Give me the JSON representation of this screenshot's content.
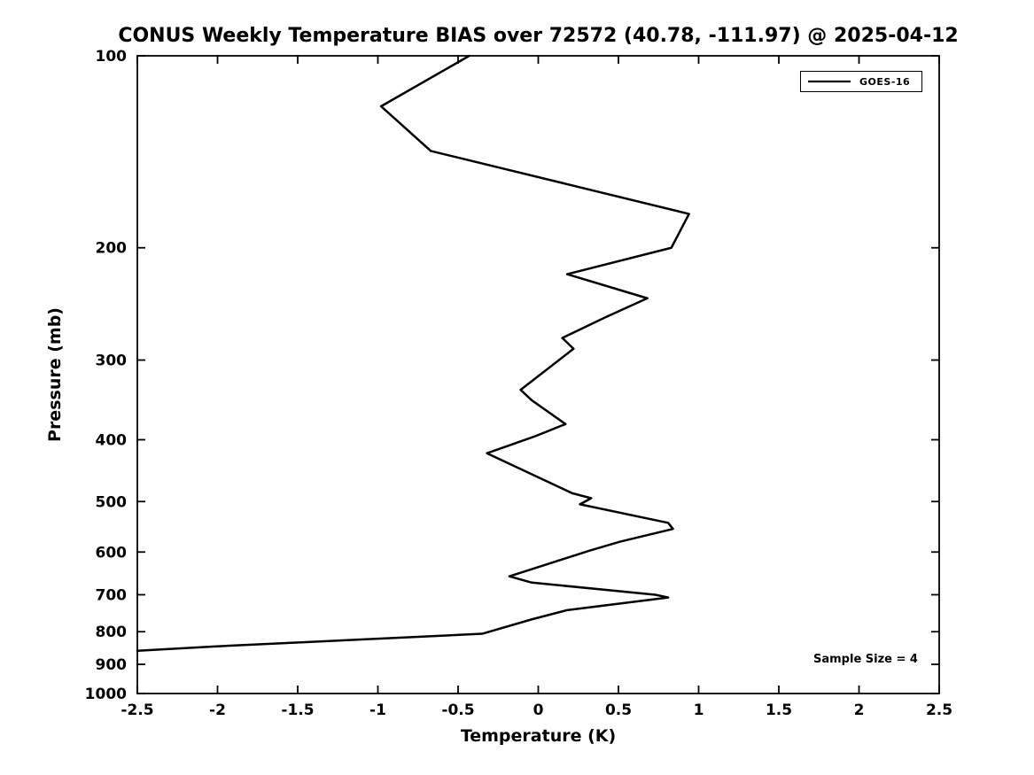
{
  "chart_data": {
    "type": "line",
    "title": "CONUS Weekly Temperature BIAS over 72572 (40.78, -111.97) @ 2025-04-12",
    "xlabel": "Temperature (K)",
    "ylabel": "Pressure (mb)",
    "xlim": [
      -2.5,
      2.5
    ],
    "ylim": [
      100,
      1000
    ],
    "yscale": "log",
    "y_inverted": true,
    "grid": false,
    "x_ticks": [
      -2.5,
      -2,
      -1.5,
      -1,
      -0.5,
      0,
      0.5,
      1,
      1.5,
      2,
      2.5
    ],
    "x_tick_labels": [
      "-2.5",
      "-2",
      "-1.5",
      "-1",
      "-0.5",
      "0",
      "0.5",
      "1",
      "1.5",
      "2",
      "2.5"
    ],
    "y_ticks": [
      100,
      200,
      300,
      400,
      500,
      600,
      700,
      800,
      900,
      1000
    ],
    "y_tick_labels": [
      "100",
      "200",
      "300",
      "400",
      "500",
      "600",
      "700",
      "800",
      "900",
      "1000"
    ],
    "legend": {
      "position": "top-right",
      "entries": [
        {
          "label": "GOES-16",
          "color": "#000000"
        }
      ]
    },
    "annotation": "Sample Size = 4",
    "line_color": "#000000",
    "series": [
      {
        "name": "GOES-16",
        "color": "#000000",
        "points_format": [
          "temperature_bias_K",
          "pressure_mb"
        ],
        "points": [
          [
            -0.43,
            100
          ],
          [
            -0.98,
            120
          ],
          [
            -0.67,
            141
          ],
          [
            0.27,
            161
          ],
          [
            0.94,
            177
          ],
          [
            0.83,
            200
          ],
          [
            0.18,
            220
          ],
          [
            0.68,
            240
          ],
          [
            0.42,
            257
          ],
          [
            0.15,
            277
          ],
          [
            0.22,
            288
          ],
          [
            -0.11,
            334
          ],
          [
            -0.04,
            347
          ],
          [
            0.17,
            378
          ],
          [
            -0.02,
            395
          ],
          [
            -0.32,
            420
          ],
          [
            0.21,
            485
          ],
          [
            0.33,
            494
          ],
          [
            0.26,
            505
          ],
          [
            0.81,
            540
          ],
          [
            0.84,
            552
          ],
          [
            0.51,
            578
          ],
          [
            0.32,
            597
          ],
          [
            -0.18,
            655
          ],
          [
            -0.04,
            670
          ],
          [
            0.73,
            700
          ],
          [
            0.81,
            707
          ],
          [
            0.18,
            740
          ],
          [
            -0.04,
            765
          ],
          [
            -0.35,
            806
          ],
          [
            -2.03,
            844
          ],
          [
            -2.5,
            857
          ]
        ]
      }
    ]
  }
}
